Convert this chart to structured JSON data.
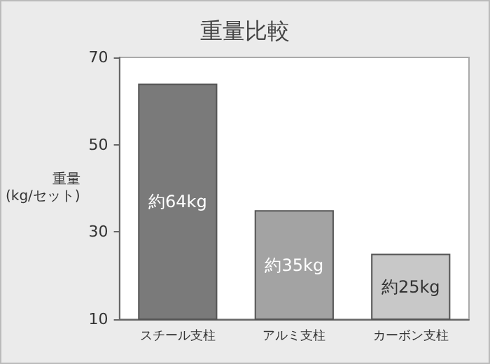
{
  "chart_data": {
    "type": "bar",
    "title": "重量比較",
    "ylabel": "重量\n(kg/セット)",
    "categories": [
      "スチール支柱",
      "アルミ支柱",
      "カーボン支柱"
    ],
    "values": [
      64,
      35,
      25
    ],
    "value_labels": [
      "約64kg",
      "約35kg",
      "約25kg"
    ],
    "colors": [
      "#7a7a7a",
      "#a3a3a3",
      "#c8c8c8"
    ],
    "ylim": [
      10,
      70
    ],
    "yticks": [
      10,
      30,
      50,
      70
    ],
    "grid": false
  }
}
